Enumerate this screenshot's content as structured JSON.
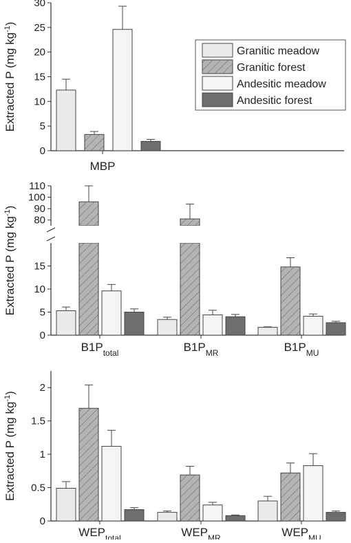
{
  "colors": {
    "granitic_meadow": "#ebebeb",
    "granitic_forest": "#b4b4b4",
    "andesitic_meadow": "#f4f4f4",
    "andesitic_forest": "#6e6e6e",
    "axis": "#333333"
  },
  "legend": {
    "placement": "top-right",
    "items": [
      {
        "label": "Granitic meadow",
        "series": "granitic_meadow"
      },
      {
        "label": "Granitic forest",
        "series": "granitic_forest"
      },
      {
        "label": "Andesitic meadow",
        "series": "andesitic_meadow"
      },
      {
        "label": "Andesitic forest",
        "series": "andesitic_forest"
      }
    ]
  },
  "chart_data": [
    {
      "type": "bar",
      "ylabel": "Extracted P (mg kg",
      "ylabel_sup": "-1",
      "ylabel_tail": ")",
      "ylim": [
        0,
        30
      ],
      "yticks": [
        "0",
        "5",
        "10",
        "15",
        "20",
        "25",
        "30"
      ],
      "categories": [
        {
          "main": "MBP",
          "sub": ""
        }
      ],
      "series": [
        {
          "name": "Granitic meadow",
          "values": [
            12.3
          ],
          "errors": [
            2.2
          ]
        },
        {
          "name": "Granitic forest",
          "values": [
            3.3
          ],
          "errors": [
            0.6
          ]
        },
        {
          "name": "Andesitic meadow",
          "values": [
            24.6
          ],
          "errors": [
            4.7
          ]
        },
        {
          "name": "Andesitic forest",
          "values": [
            1.9
          ],
          "errors": [
            0.4
          ]
        }
      ]
    },
    {
      "type": "bar",
      "ylabel": "Extracted P (mg kg",
      "ylabel_sup": "-1",
      "ylabel_tail": ")",
      "broken_axis": true,
      "ylim_lower": [
        0,
        20
      ],
      "ylim_upper": [
        75,
        110
      ],
      "yticks_lower": [
        "0",
        "5",
        "10",
        "15"
      ],
      "yticks_upper": [
        "80",
        "90",
        "100",
        "110"
      ],
      "categories": [
        {
          "main": "B1P",
          "sub": "total"
        },
        {
          "main": "B1P",
          "sub": "MR"
        },
        {
          "main": "B1P",
          "sub": "MU"
        }
      ],
      "series": [
        {
          "name": "Granitic meadow",
          "values": [
            5.3,
            3.4,
            1.7
          ],
          "errors": [
            0.8,
            0.5,
            0.1
          ]
        },
        {
          "name": "Granitic forest",
          "values": [
            96,
            81,
            14.8
          ],
          "errors": [
            14,
            13,
            2.0
          ]
        },
        {
          "name": "Andesitic meadow",
          "values": [
            9.6,
            4.4,
            4.1
          ],
          "errors": [
            1.4,
            1.0,
            0.5
          ]
        },
        {
          "name": "Andesitic forest",
          "values": [
            5.0,
            4.0,
            2.7
          ],
          "errors": [
            0.7,
            0.5,
            0.3
          ]
        }
      ]
    },
    {
      "type": "bar",
      "ylabel": "Extracted P (mg kg",
      "ylabel_sup": "-1",
      "ylabel_tail": ")",
      "ylim": [
        0,
        2.25
      ],
      "yticks": [
        "0",
        "0.5",
        "1",
        "1.5",
        "2"
      ],
      "categories": [
        {
          "main": "WEP",
          "sub": "total"
        },
        {
          "main": "WEP",
          "sub": "MR"
        },
        {
          "main": "WEP",
          "sub": "MU"
        }
      ],
      "series": [
        {
          "name": "Granitic meadow",
          "values": [
            0.49,
            0.13,
            0.3
          ],
          "errors": [
            0.1,
            0.02,
            0.07
          ]
        },
        {
          "name": "Granitic forest",
          "values": [
            1.69,
            0.69,
            0.72
          ],
          "errors": [
            0.35,
            0.13,
            0.15
          ]
        },
        {
          "name": "Andesitic meadow",
          "values": [
            1.12,
            0.24,
            0.83
          ],
          "errors": [
            0.24,
            0.04,
            0.18
          ]
        },
        {
          "name": "Andesitic forest",
          "values": [
            0.17,
            0.08,
            0.13
          ],
          "errors": [
            0.03,
            0.01,
            0.02
          ]
        }
      ]
    }
  ]
}
